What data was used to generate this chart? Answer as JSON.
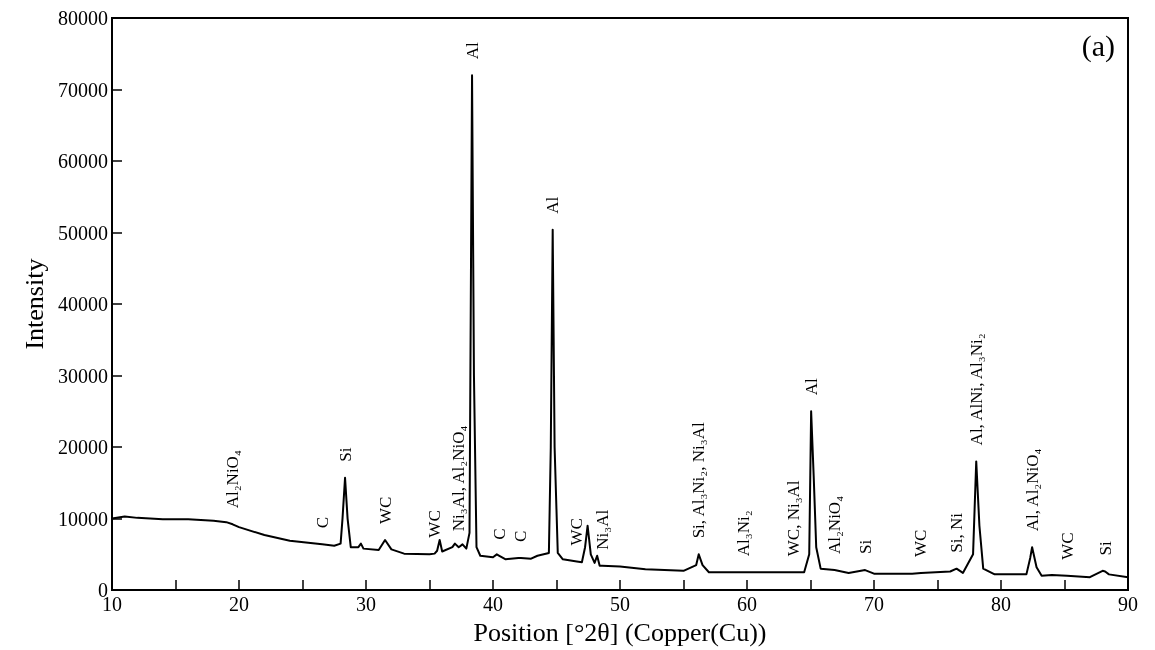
{
  "chart_data": {
    "type": "line",
    "xlabel": "Position [°2θ] (Copper(Cu))",
    "ylabel": "Intensity",
    "xlim": [
      10,
      90
    ],
    "ylim": [
      0,
      80000
    ],
    "xticks": [
      10,
      {
        "value": 15,
        "label": null
      },
      20,
      {
        "value": 25,
        "label": null
      },
      30,
      {
        "value": 35,
        "label": null
      },
      40,
      {
        "value": 45,
        "label": null
      },
      50,
      {
        "value": 55,
        "label": null
      },
      60,
      {
        "value": 65,
        "label": null
      },
      70,
      {
        "value": 75,
        "label": null
      },
      80,
      {
        "value": 85,
        "label": null
      },
      90
    ],
    "yticks": [
      0,
      10000,
      20000,
      30000,
      40000,
      50000,
      60000,
      70000,
      80000
    ],
    "grid": false,
    "marker": "none",
    "line_style": "solid",
    "series": [
      {
        "color": "#000000",
        "x": [
          10,
          11,
          12,
          14,
          16,
          18,
          19,
          19.5,
          20,
          22,
          24,
          26,
          26.55,
          27.5,
          28.0,
          28.15,
          28.35,
          28.55,
          28.8,
          29.4,
          29.6,
          29.8,
          31,
          31.5,
          32,
          33,
          35,
          35.4,
          35.6,
          35.8,
          36,
          36.8,
          37,
          37.3,
          37.6,
          37.9,
          38.15,
          38.35,
          38.5,
          38.7,
          39,
          40,
          40.3,
          40.5,
          41,
          42,
          42.2,
          43,
          43.5,
          44.4,
          44.55,
          44.7,
          44.85,
          45.1,
          45.5,
          46.6,
          47,
          47.25,
          47.45,
          47.7,
          48,
          48.2,
          48.4,
          48.6,
          50,
          52,
          55,
          56,
          56.2,
          56.5,
          57,
          59.7,
          60,
          63.7,
          64.5,
          64.9,
          65.05,
          65.25,
          65.45,
          65.8,
          66.9,
          68,
          69.3,
          70,
          73,
          73.7,
          76,
          76.5,
          77,
          77.8,
          78.05,
          78.3,
          78.6,
          79.5,
          82,
          82.3,
          82.45,
          82.8,
          83.2,
          84,
          85.2,
          87,
          88,
          88.2,
          88.5,
          90
        ],
        "values": [
          10000,
          10300,
          10100,
          9900,
          9900,
          9700,
          9500,
          9200,
          8800,
          7700,
          6900,
          6500,
          6400,
          6200,
          6500,
          10000,
          15700,
          10000,
          6000,
          6000,
          6500,
          5800,
          5600,
          7000,
          5700,
          5100,
          5000,
          5100,
          5500,
          7000,
          5400,
          6000,
          6500,
          6000,
          6400,
          5800,
          8000,
          72000,
          30000,
          6000,
          4800,
          4600,
          5000,
          4800,
          4300,
          4500,
          4500,
          4400,
          4800,
          5200,
          20000,
          50400,
          20000,
          5200,
          4300,
          4000,
          3900,
          6000,
          9000,
          5000,
          3800,
          4800,
          3400,
          3400,
          3300,
          2900,
          2700,
          3500,
          5000,
          3500,
          2500,
          2500,
          2500,
          2500,
          2500,
          5000,
          25000,
          16000,
          6000,
          3000,
          2800,
          2400,
          2800,
          2300,
          2300,
          2400,
          2600,
          3000,
          2400,
          5000,
          18000,
          9000,
          3000,
          2200,
          2200,
          4500,
          6000,
          3200,
          2000,
          2100,
          2000,
          1800,
          2700,
          2600,
          2200,
          1800
        ]
      }
    ],
    "annotations": [
      "(a)",
      {
        "text": "Al₂NiO₄",
        "x": 19.5,
        "y": 9200
      },
      {
        "text": "C",
        "x": 26.55,
        "y": 6400
      },
      {
        "text": "Si",
        "x": 28.35,
        "y": 15700
      },
      {
        "text": "WC",
        "x": 31.5,
        "y": 7000
      },
      {
        "text": "WC",
        "x": 35.4,
        "y": 5100
      },
      {
        "text": "Ni₃Al, Al₂NiO₄",
        "x": 37.3,
        "y": 6000
      },
      {
        "text": "Al",
        "x": 38.35,
        "y": 72000
      },
      {
        "text": "C",
        "x": 40.5,
        "y": 4800
      },
      {
        "text": "C",
        "x": 42.2,
        "y": 4500
      },
      {
        "text": "Al",
        "x": 44.7,
        "y": 50400
      },
      {
        "text": "WC",
        "x": 46.6,
        "y": 4000
      },
      {
        "text": "Ni₃Al",
        "x": 48.6,
        "y": 3400
      },
      {
        "text": "Si, Al₃Ni₂, Ni₃Al",
        "x": 56.2,
        "y": 5000
      },
      {
        "text": "Al₃Ni₂",
        "x": 59.7,
        "y": 2500
      },
      {
        "text": "WC, Ni₃Al",
        "x": 63.7,
        "y": 2500
      },
      {
        "text": "Al",
        "x": 65.05,
        "y": 25000
      },
      {
        "text": "Al₂NiO₄",
        "x": 66.9,
        "y": 2800
      },
      {
        "text": "Si",
        "x": 69.3,
        "y": 2800
      },
      {
        "text": "WC",
        "x": 73.7,
        "y": 2400
      },
      {
        "text": "Si, Ni",
        "x": 76.5,
        "y": 3000
      },
      {
        "text": "Al, AlNi, Al₃Ni₂",
        "x": 78.05,
        "y": 18000
      },
      {
        "text": "Al, Al₂NiO₄",
        "x": 82.45,
        "y": 6000
      },
      {
        "text": "WC",
        "x": 85.2,
        "y": 2000
      },
      {
        "text": "Si",
        "x": 88.2,
        "y": 2600
      }
    ]
  }
}
